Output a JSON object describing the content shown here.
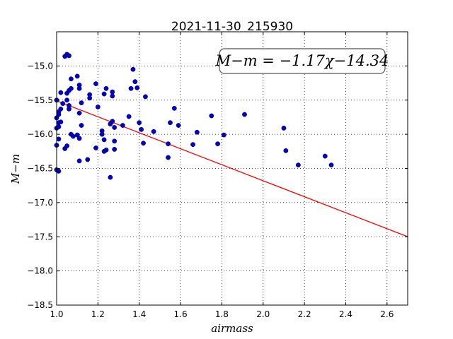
{
  "chart_data": {
    "type": "scatter",
    "title": "2021-11-30_215930",
    "xlabel": "airmass",
    "ylabel": "M−m",
    "xlim": [
      1.0,
      2.7
    ],
    "ylim": [
      -18.5,
      -14.5
    ],
    "x_ticks": [
      1.0,
      1.2,
      1.4,
      1.6,
      1.8,
      2.0,
      2.2,
      2.4,
      2.6
    ],
    "x_tick_labels": [
      "1.0",
      "1.2",
      "1.4",
      "1.6",
      "1.8",
      "2.0",
      "2.2",
      "2.4",
      "2.6"
    ],
    "y_ticks": [
      -15.0,
      -15.5,
      -16.0,
      -16.5,
      -17.0,
      -17.5,
      -18.0,
      -18.5
    ],
    "y_tick_labels": [
      "−15.0",
      "−15.5",
      "−16.0",
      "−16.5",
      "−17.0",
      "−17.5",
      "−18.0",
      "−18.5"
    ],
    "grid": true,
    "annotation": "M−m = −1.17χ−14.34",
    "fit": {
      "slope": -1.17,
      "intercept": -14.34,
      "color": "#ff0000"
    },
    "point_color": "#0000cc",
    "points": [
      [
        1.04,
        -14.86
      ],
      [
        1.05,
        -14.83
      ],
      [
        1.06,
        -14.85
      ],
      [
        1.07,
        -15.19
      ],
      [
        1.1,
        -15.15
      ],
      [
        1.11,
        -15.28
      ],
      [
        1.11,
        -15.33
      ],
      [
        1.06,
        -15.36
      ],
      [
        1.07,
        -15.33
      ],
      [
        1.05,
        -15.4
      ],
      [
        1.02,
        -15.39
      ],
      [
        1.0,
        -15.5
      ],
      [
        1.03,
        -15.55
      ],
      [
        1.05,
        -15.5
      ],
      [
        1.06,
        -15.58
      ],
      [
        1.06,
        -15.63
      ],
      [
        1.01,
        -15.67
      ],
      [
        1.02,
        -15.63
      ],
      [
        1.01,
        -15.71
      ],
      [
        1.0,
        -15.76
      ],
      [
        1.01,
        -15.83
      ],
      [
        1.02,
        -15.82
      ],
      [
        1.0,
        -15.91
      ],
      [
        1.01,
        -15.89
      ],
      [
        1.07,
        -16.0
      ],
      [
        1.08,
        -16.03
      ],
      [
        1.1,
        -16.01
      ],
      [
        1.11,
        -16.06
      ],
      [
        1.01,
        -16.07
      ],
      [
        1.0,
        -16.16
      ],
      [
        1.04,
        -16.21
      ],
      [
        1.05,
        -16.17
      ],
      [
        1.11,
        -15.69
      ],
      [
        1.12,
        -15.54
      ],
      [
        1.12,
        -15.87
      ],
      [
        1.11,
        -16.39
      ],
      [
        1.15,
        -16.37
      ],
      [
        1.01,
        -16.54
      ],
      [
        1.0,
        -16.52
      ],
      [
        1.16,
        -15.42
      ],
      [
        1.16,
        -15.47
      ],
      [
        1.19,
        -15.26
      ],
      [
        1.2,
        -15.6
      ],
      [
        1.22,
        -15.95
      ],
      [
        1.22,
        -16.0
      ],
      [
        1.23,
        -15.41
      ],
      [
        1.24,
        -15.33
      ],
      [
        1.23,
        -16.08
      ],
      [
        1.23,
        -16.25
      ],
      [
        1.24,
        -16.23
      ],
      [
        1.19,
        -16.2
      ],
      [
        1.26,
        -15.85
      ],
      [
        1.27,
        -15.81
      ],
      [
        1.28,
        -15.9
      ],
      [
        1.27,
        -15.38
      ],
      [
        1.27,
        -15.44
      ],
      [
        1.28,
        -16.1
      ],
      [
        1.28,
        -16.22
      ],
      [
        1.26,
        -16.63
      ],
      [
        1.32,
        -15.87
      ],
      [
        1.35,
        -15.74
      ],
      [
        1.36,
        -15.33
      ],
      [
        1.37,
        -15.05
      ],
      [
        1.38,
        -15.23
      ],
      [
        1.39,
        -15.32
      ],
      [
        1.4,
        -15.83
      ],
      [
        1.41,
        -15.93
      ],
      [
        1.42,
        -16.13
      ],
      [
        1.43,
        -15.45
      ],
      [
        1.47,
        -15.96
      ],
      [
        1.54,
        -16.14
      ],
      [
        1.54,
        -16.34
      ],
      [
        1.55,
        -15.83
      ],
      [
        1.57,
        -15.62
      ],
      [
        1.59,
        -15.87
      ],
      [
        1.66,
        -16.15
      ],
      [
        1.68,
        -15.97
      ],
      [
        1.75,
        -15.73
      ],
      [
        1.78,
        -16.14
      ],
      [
        1.81,
        -16.01
      ],
      [
        1.91,
        -15.71
      ],
      [
        2.1,
        -15.91
      ],
      [
        2.11,
        -16.24
      ],
      [
        2.17,
        -16.45
      ],
      [
        2.3,
        -16.32
      ],
      [
        2.33,
        -16.45
      ]
    ]
  }
}
